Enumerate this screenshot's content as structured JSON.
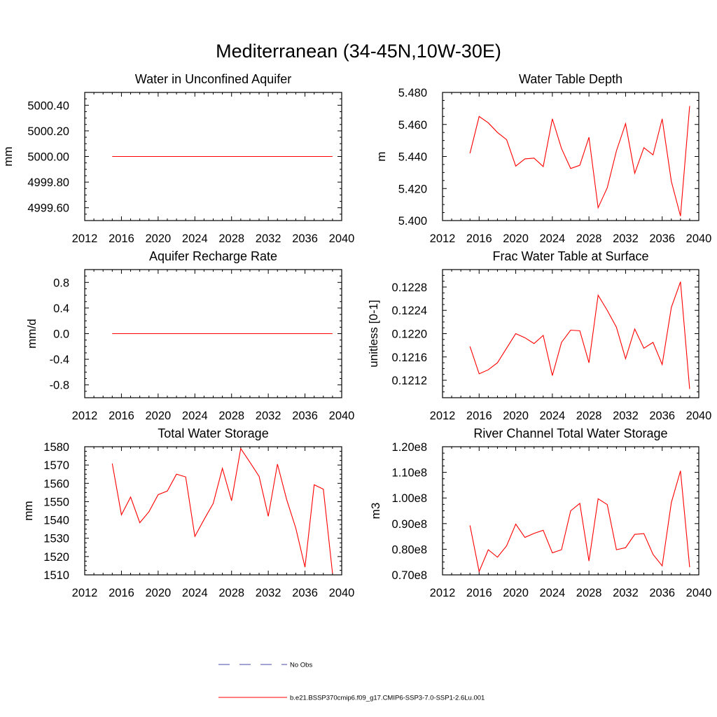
{
  "figure": {
    "title": "Mediterranean (34-45N,10W-30E)"
  },
  "legend": {
    "items": [
      {
        "label": "No Obs",
        "color": "#4a4aa8",
        "dashed": true
      },
      {
        "label": "b.e21.BSSP370cmip6.f09_g17.CMIP6-SSP3-7.0-SSP1-2.6Lu.001",
        "color": "#ff0000",
        "dashed": false
      }
    ]
  },
  "chart_data": [
    {
      "type": "line",
      "title": "Water in Unconfined Aquifer",
      "ylabel": "mm",
      "xlim": [
        2012,
        2040
      ],
      "xticks": [
        2012,
        2016,
        2020,
        2024,
        2028,
        2032,
        2036,
        2040
      ],
      "ylim": [
        4999.5,
        5000.5
      ],
      "yticks": [
        4999.6,
        4999.8,
        5000.0,
        5000.2,
        5000.4
      ],
      "ytick_labels": [
        "4999.60",
        "4999.80",
        "5000.00",
        "5000.20",
        "5000.40"
      ],
      "x": [
        2015,
        2016,
        2017,
        2018,
        2019,
        2020,
        2021,
        2022,
        2023,
        2024,
        2025,
        2026,
        2027,
        2028,
        2029,
        2030,
        2031,
        2032,
        2033,
        2034,
        2035,
        2036,
        2037,
        2038,
        2039
      ],
      "series": [
        {
          "color": "#ff0000",
          "values": [
            5000,
            5000,
            5000,
            5000,
            5000,
            5000,
            5000,
            5000,
            5000,
            5000,
            5000,
            5000,
            5000,
            5000,
            5000,
            5000,
            5000,
            5000,
            5000,
            5000,
            5000,
            5000,
            5000,
            5000,
            5000
          ]
        }
      ]
    },
    {
      "type": "line",
      "title": "Water Table Depth",
      "ylabel": "m",
      "xlim": [
        2012,
        2040
      ],
      "xticks": [
        2012,
        2016,
        2020,
        2024,
        2028,
        2032,
        2036,
        2040
      ],
      "ylim": [
        5.4,
        5.48
      ],
      "yticks": [
        5.4,
        5.42,
        5.44,
        5.46,
        5.48
      ],
      "ytick_labels": [
        "5.400",
        "5.420",
        "5.440",
        "5.460",
        "5.480"
      ],
      "x": [
        2015,
        2016,
        2017,
        2018,
        2019,
        2020,
        2021,
        2022,
        2023,
        2024,
        2025,
        2026,
        2027,
        2028,
        2029,
        2030,
        2031,
        2032,
        2033,
        2034,
        2035,
        2036,
        2037,
        2038,
        2039
      ],
      "series": [
        {
          "color": "#ff0000",
          "values": [
            5.442,
            5.465,
            5.461,
            5.455,
            5.4505,
            5.434,
            5.4385,
            5.439,
            5.4337,
            5.4635,
            5.445,
            5.4325,
            5.4345,
            5.452,
            5.408,
            5.4205,
            5.4435,
            5.4605,
            5.4295,
            5.4455,
            5.441,
            5.4635,
            5.4245,
            5.4028,
            5.4715
          ]
        }
      ]
    },
    {
      "type": "line",
      "title": "Aquifer Recharge Rate",
      "ylabel": "mm/d",
      "xlim": [
        2012,
        2040
      ],
      "xticks": [
        2012,
        2016,
        2020,
        2024,
        2028,
        2032,
        2036,
        2040
      ],
      "ylim": [
        -1.0,
        1.0
      ],
      "yticks": [
        -0.8,
        -0.4,
        0.0,
        0.4,
        0.8
      ],
      "ytick_labels": [
        "-0.8",
        "-0.4",
        "0.0",
        "0.4",
        "0.8"
      ],
      "x": [
        2015,
        2016,
        2017,
        2018,
        2019,
        2020,
        2021,
        2022,
        2023,
        2024,
        2025,
        2026,
        2027,
        2028,
        2029,
        2030,
        2031,
        2032,
        2033,
        2034,
        2035,
        2036,
        2037,
        2038,
        2039
      ],
      "series": [
        {
          "color": "#ff0000",
          "values": [
            0,
            0,
            0,
            0,
            0,
            0,
            0,
            0,
            0,
            0,
            0,
            0,
            0,
            0,
            0,
            0,
            0,
            0,
            0,
            0,
            0,
            0,
            0,
            0,
            0
          ]
        }
      ]
    },
    {
      "type": "line",
      "title": "Frac Water Table at Surface",
      "ylabel": "unitless [0-1]",
      "xlim": [
        2012,
        2040
      ],
      "xticks": [
        2012,
        2016,
        2020,
        2024,
        2028,
        2032,
        2036,
        2040
      ],
      "ylim": [
        0.1209,
        0.1231
      ],
      "yticks": [
        0.1212,
        0.1216,
        0.122,
        0.1224,
        0.1228
      ],
      "ytick_labels": [
        "0.1212",
        "0.1216",
        "0.1220",
        "0.1224",
        "0.1228"
      ],
      "x": [
        2015,
        2016,
        2017,
        2018,
        2019,
        2020,
        2021,
        2022,
        2023,
        2024,
        2025,
        2026,
        2027,
        2028,
        2029,
        2030,
        2031,
        2032,
        2033,
        2034,
        2035,
        2036,
        2037,
        2038,
        2039
      ],
      "series": [
        {
          "color": "#ff0000",
          "values": [
            0.12178,
            0.12131,
            0.12138,
            0.1215,
            0.12175,
            0.122,
            0.12193,
            0.12183,
            0.12197,
            0.12128,
            0.12185,
            0.12206,
            0.12205,
            0.1215,
            0.12266,
            0.1224,
            0.12211,
            0.12157,
            0.12208,
            0.12175,
            0.12185,
            0.12147,
            0.12245,
            0.12289,
            0.12105
          ]
        }
      ]
    },
    {
      "type": "line",
      "title": "Total Water Storage",
      "ylabel": "mm",
      "xlim": [
        2012,
        2040
      ],
      "xticks": [
        2012,
        2016,
        2020,
        2024,
        2028,
        2032,
        2036,
        2040
      ],
      "ylim": [
        1510,
        1580
      ],
      "yticks": [
        1510,
        1520,
        1530,
        1540,
        1550,
        1560,
        1570,
        1580
      ],
      "ytick_labels": [
        "1510",
        "1520",
        "1530",
        "1540",
        "1550",
        "1560",
        "1570",
        "1580"
      ],
      "x": [
        2015,
        2016,
        2017,
        2018,
        2019,
        2020,
        2021,
        2022,
        2023,
        2024,
        2025,
        2026,
        2027,
        2028,
        2029,
        2030,
        2031,
        2032,
        2033,
        2034,
        2035,
        2036,
        2037,
        2038,
        2039
      ],
      "series": [
        {
          "color": "#ff0000",
          "values": [
            1570.8,
            1542.8,
            1552.5,
            1538.5,
            1544.5,
            1553.8,
            1555.8,
            1565,
            1563.5,
            1531,
            1540.2,
            1549,
            1568.2,
            1550.5,
            1579,
            1571.5,
            1563.8,
            1542,
            1570.5,
            1551.2,
            1535.5,
            1514.2,
            1559.2,
            1556.8,
            1510.8
          ]
        }
      ]
    },
    {
      "type": "line",
      "title": "River Channel Total Water Storage",
      "ylabel": "m3",
      "xlim": [
        2012,
        2040
      ],
      "xticks": [
        2012,
        2016,
        2020,
        2024,
        2028,
        2032,
        2036,
        2040
      ],
      "ylim": [
        70000000,
        120000000
      ],
      "yticks": [
        70000000,
        80000000,
        90000000,
        100000000,
        110000000,
        120000000
      ],
      "ytick_labels": [
        "0.70e8",
        "0.80e8",
        "0.90e8",
        "1.00e8",
        "1.10e8",
        "1.20e8"
      ],
      "x": [
        2015,
        2016,
        2017,
        2018,
        2019,
        2020,
        2021,
        2022,
        2023,
        2024,
        2025,
        2026,
        2027,
        2028,
        2029,
        2030,
        2031,
        2032,
        2033,
        2034,
        2035,
        2036,
        2037,
        2038,
        2039
      ],
      "series": [
        {
          "color": "#ff0000",
          "values": [
            89300000,
            71300000,
            79800000,
            76900000,
            81300000,
            89800000,
            84600000,
            86200000,
            87400000,
            78600000,
            79800000,
            95000000,
            97900000,
            75400000,
            99700000,
            97400000,
            79800000,
            80600000,
            85800000,
            86100000,
            78000000,
            73500000,
            98200000,
            110600000,
            73000000
          ]
        }
      ]
    }
  ]
}
